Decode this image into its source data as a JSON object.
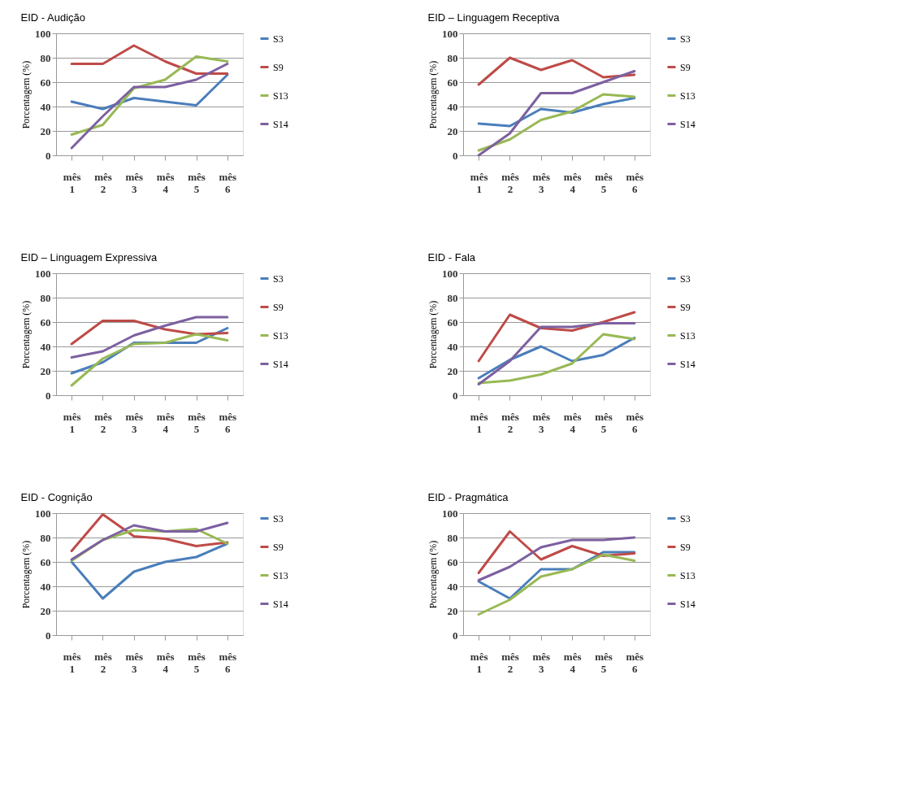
{
  "chart_data": [
    {
      "type": "line",
      "title": "EID - Audição",
      "ylabel": "Porcentagem (%)",
      "categories": [
        "mês 1",
        "mês 2",
        "mês 3",
        "mês 4",
        "mês 5",
        "mês 6"
      ],
      "ylim": [
        0,
        100
      ],
      "yticks": [
        0,
        20,
        40,
        60,
        80,
        100
      ],
      "grid": "y",
      "legend": "right",
      "marker": "none",
      "line_style": "solid",
      "series": [
        {
          "name": "S3",
          "color": "#4a7ebb",
          "values": [
            44,
            38,
            47,
            44,
            41,
            66
          ]
        },
        {
          "name": "S9",
          "color": "#be4b48",
          "values": [
            75,
            75,
            90,
            77,
            67,
            67
          ]
        },
        {
          "name": "S13",
          "color": "#98b954",
          "values": [
            17,
            25,
            55,
            62,
            81,
            77
          ]
        },
        {
          "name": "S14",
          "color": "#7d60a0",
          "values": [
            6,
            32,
            56,
            56,
            62,
            75
          ]
        }
      ]
    },
    {
      "type": "line",
      "title": "EID – Linguagem Receptiva",
      "ylabel": "Porcentagem (%)",
      "categories": [
        "mês 1",
        "mês 2",
        "mês 3",
        "mês 4",
        "mês 5",
        "mês 6"
      ],
      "ylim": [
        0,
        100
      ],
      "yticks": [
        0,
        20,
        40,
        60,
        80,
        100
      ],
      "grid": "y",
      "legend": "right",
      "marker": "none",
      "line_style": "solid",
      "series": [
        {
          "name": "S3",
          "color": "#4a7ebb",
          "values": [
            26,
            24,
            38,
            35,
            42,
            47
          ]
        },
        {
          "name": "S9",
          "color": "#be4b48",
          "values": [
            58,
            80,
            70,
            78,
            64,
            66
          ]
        },
        {
          "name": "S13",
          "color": "#98b954",
          "values": [
            4,
            13,
            29,
            36,
            50,
            48
          ]
        },
        {
          "name": "S14",
          "color": "#7d60a0",
          "values": [
            0,
            18,
            51,
            51,
            60,
            69
          ]
        }
      ]
    },
    {
      "type": "line",
      "title": "EID – Linguagem Expressiva",
      "ylabel": "Porcentagem (%)",
      "categories": [
        "mês 1",
        "mês 2",
        "mês 3",
        "mês 4",
        "mês 5",
        "mês 6"
      ],
      "ylim": [
        0,
        100
      ],
      "yticks": [
        0,
        20,
        40,
        60,
        80,
        100
      ],
      "grid": "y",
      "legend": "right",
      "marker": "none",
      "line_style": "solid",
      "series": [
        {
          "name": "S3",
          "color": "#4a7ebb",
          "values": [
            18,
            27,
            43,
            43,
            43,
            55
          ]
        },
        {
          "name": "S9",
          "color": "#be4b48",
          "values": [
            42,
            61,
            61,
            54,
            50,
            51
          ]
        },
        {
          "name": "S13",
          "color": "#98b954",
          "values": [
            8,
            30,
            42,
            43,
            50,
            45
          ]
        },
        {
          "name": "S14",
          "color": "#7d60a0",
          "values": [
            31,
            36,
            49,
            57,
            64,
            64
          ]
        }
      ]
    },
    {
      "type": "line",
      "title": "EID - Fala",
      "ylabel": "Porcentagem (%)",
      "categories": [
        "mês 1",
        "mês 2",
        "mês 3",
        "mês 4",
        "mês 5",
        "mês 6"
      ],
      "ylim": [
        0,
        100
      ],
      "yticks": [
        0,
        20,
        40,
        60,
        80,
        100
      ],
      "grid": "y",
      "legend": "right",
      "marker": "none",
      "line_style": "solid",
      "series": [
        {
          "name": "S3",
          "color": "#4a7ebb",
          "values": [
            14,
            29,
            40,
            28,
            33,
            47
          ]
        },
        {
          "name": "S9",
          "color": "#be4b48",
          "values": [
            28,
            66,
            55,
            53,
            60,
            68
          ]
        },
        {
          "name": "S13",
          "color": "#98b954",
          "values": [
            10,
            12,
            17,
            26,
            50,
            46
          ]
        },
        {
          "name": "S14",
          "color": "#7d60a0",
          "values": [
            9,
            28,
            56,
            56,
            59,
            59
          ]
        }
      ]
    },
    {
      "type": "line",
      "title": "EID - Cognição",
      "ylabel": "Porcentagem (%)",
      "categories": [
        "mês 1",
        "mês 2",
        "mês 3",
        "mês 4",
        "mês 5",
        "mês 6"
      ],
      "ylim": [
        0,
        100
      ],
      "yticks": [
        0,
        20,
        40,
        60,
        80,
        100
      ],
      "grid": "y",
      "legend": "right",
      "marker": "none",
      "line_style": "solid",
      "series": [
        {
          "name": "S3",
          "color": "#4a7ebb",
          "values": [
            60,
            30,
            52,
            60,
            64,
            75
          ]
        },
        {
          "name": "S9",
          "color": "#be4b48",
          "values": [
            69,
            99,
            81,
            79,
            73,
            76
          ]
        },
        {
          "name": "S13",
          "color": "#98b954",
          "values": [
            61,
            78,
            86,
            85,
            87,
            75
          ]
        },
        {
          "name": "S14",
          "color": "#7d60a0",
          "values": [
            62,
            78,
            90,
            85,
            85,
            92
          ]
        }
      ]
    },
    {
      "type": "line",
      "title": "EID - Pragmática",
      "ylabel": "Porcentagem (%)",
      "categories": [
        "mês 1",
        "mês 2",
        "mês 3",
        "mês 4",
        "mês 5",
        "mês 6"
      ],
      "ylim": [
        0,
        100
      ],
      "yticks": [
        0,
        20,
        40,
        60,
        80,
        100
      ],
      "grid": "y",
      "legend": "right",
      "marker": "none",
      "line_style": "solid",
      "series": [
        {
          "name": "S3",
          "color": "#4a7ebb",
          "values": [
            44,
            30,
            54,
            54,
            68,
            68
          ]
        },
        {
          "name": "S9",
          "color": "#be4b48",
          "values": [
            51,
            85,
            62,
            73,
            65,
            67
          ]
        },
        {
          "name": "S13",
          "color": "#98b954",
          "values": [
            17,
            29,
            48,
            54,
            66,
            61
          ]
        },
        {
          "name": "S14",
          "color": "#7d60a0",
          "values": [
            45,
            56,
            72,
            78,
            78,
            80
          ]
        }
      ]
    }
  ]
}
